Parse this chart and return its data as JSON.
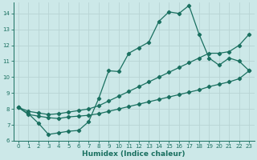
{
  "xlabel": "Humidex (Indice chaleur)",
  "xlim": [
    -0.5,
    23.5
  ],
  "ylim": [
    6,
    14.67
  ],
  "yticks": [
    6,
    7,
    8,
    9,
    10,
    11,
    12,
    13,
    14
  ],
  "xticks": [
    0,
    1,
    2,
    3,
    4,
    5,
    6,
    7,
    8,
    9,
    10,
    11,
    12,
    13,
    14,
    15,
    16,
    17,
    18,
    19,
    20,
    21,
    22,
    23
  ],
  "bg_color": "#cce8e8",
  "grid_color": "#b8d4d4",
  "line_color": "#1a7060",
  "line1_x": [
    0,
    1,
    2,
    3,
    4,
    5,
    6,
    7,
    8,
    9,
    10,
    11,
    12,
    13,
    14,
    15,
    16,
    17,
    18,
    19,
    20,
    21,
    22,
    23
  ],
  "line1_y": [
    8.1,
    7.7,
    7.1,
    6.4,
    6.5,
    6.6,
    6.65,
    7.2,
    8.65,
    10.4,
    10.35,
    11.5,
    11.85,
    12.2,
    13.5,
    14.1,
    14.0,
    14.5,
    12.7,
    11.2,
    10.75,
    11.2,
    11.0,
    10.4
  ],
  "line2_x": [
    0,
    1,
    2,
    3,
    4,
    5,
    6,
    7,
    8,
    9,
    10,
    11,
    12,
    13,
    14,
    15,
    16,
    17,
    18,
    19,
    20,
    21,
    22,
    23
  ],
  "line2_y": [
    8.1,
    7.65,
    7.55,
    7.45,
    7.4,
    7.5,
    7.55,
    7.6,
    7.7,
    7.85,
    8.0,
    8.15,
    8.3,
    8.45,
    8.6,
    8.75,
    8.9,
    9.05,
    9.2,
    9.4,
    9.55,
    9.7,
    9.9,
    10.4
  ],
  "line3_x": [
    0,
    1,
    2,
    3,
    4,
    5,
    6,
    7,
    8,
    9,
    10,
    11,
    12,
    13,
    14,
    15,
    16,
    17,
    18,
    19,
    20,
    21,
    22,
    23
  ],
  "line3_y": [
    8.1,
    7.85,
    7.75,
    7.65,
    7.7,
    7.8,
    7.9,
    8.0,
    8.2,
    8.5,
    8.8,
    9.1,
    9.4,
    9.7,
    10.0,
    10.3,
    10.6,
    10.9,
    11.2,
    11.5,
    11.5,
    11.6,
    12.0,
    12.7
  ]
}
